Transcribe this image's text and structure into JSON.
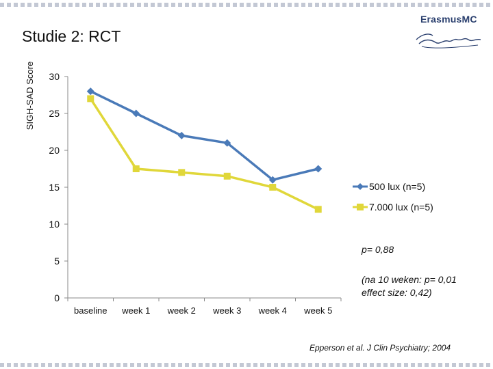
{
  "slide": {
    "title": "Studie 2: RCT",
    "logo_text": "ErasmusMC",
    "note_p": "p= 0,88",
    "note_detail_line1": "(na 10 weken: p= 0,01",
    "note_detail_line2": "effect size: 0,42)",
    "citation": "Epperson et al. J Clin Psychiatry; 2004"
  },
  "colors": {
    "series1": "#4a7ab8",
    "series2": "#e0d73a",
    "axis": "#8a8a8a",
    "border": "#c3c8d4"
  },
  "chart_data": {
    "type": "line",
    "title": "",
    "xlabel": "",
    "ylabel": "SIGH-SAD Score",
    "ylim": [
      0,
      30
    ],
    "yticks": [
      0,
      5,
      10,
      15,
      20,
      25,
      30
    ],
    "categories": [
      "baseline",
      "week 1",
      "week 2",
      "week 3",
      "week 4",
      "week 5"
    ],
    "series": [
      {
        "name": "500 lux (n=5)",
        "marker": "diamond",
        "values": [
          28,
          25,
          22,
          21,
          16,
          17.5
        ]
      },
      {
        "name": "7.000 lux (n=5)",
        "marker": "square",
        "values": [
          27,
          17.5,
          17,
          16.5,
          15,
          12
        ]
      }
    ],
    "legend": "right"
  }
}
